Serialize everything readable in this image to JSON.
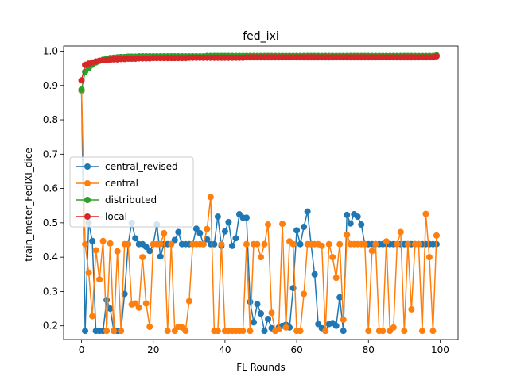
{
  "chart_data": {
    "type": "line",
    "title": "fed_ixi",
    "xlabel": "FL Rounds",
    "ylabel": "train_meter_FedIXI_dice",
    "xlim": [
      -5,
      105
    ],
    "ylim": [
      0.16,
      1.015
    ],
    "xticks": [
      0,
      20,
      40,
      60,
      80,
      100
    ],
    "yticks": [
      0.2,
      0.3,
      0.4,
      0.5,
      0.6,
      0.7,
      0.8,
      0.9,
      1.0
    ],
    "xtick_labels": [
      "0",
      "20",
      "40",
      "60",
      "80",
      "100"
    ],
    "ytick_labels": [
      "0.2",
      "0.3",
      "0.4",
      "0.5",
      "0.6",
      "0.7",
      "0.8",
      "0.9",
      "1.0"
    ],
    "grid": false,
    "legend_position": "center-left",
    "series": [
      {
        "name": "central_revised",
        "color": "#1f77b4",
        "values": [
          0.885,
          0.185,
          0.5,
          0.447,
          0.185,
          0.185,
          0.185,
          0.275,
          0.25,
          0.185,
          0.185,
          0.185,
          0.293,
          0.438,
          0.5,
          0.455,
          0.438,
          0.438,
          0.43,
          0.418,
          0.438,
          0.495,
          0.402,
          0.438,
          0.438,
          0.438,
          0.45,
          0.473,
          0.438,
          0.438,
          0.438,
          0.438,
          0.483,
          0.47,
          0.438,
          0.452,
          0.438,
          0.438,
          0.518,
          0.433,
          0.475,
          0.502,
          0.433,
          0.455,
          0.525,
          0.515,
          0.515,
          0.27,
          0.21,
          0.263,
          0.236,
          0.185,
          0.22,
          0.193,
          0.185,
          0.195,
          0.2,
          0.203,
          0.195,
          0.31,
          0.478,
          0.438,
          0.488,
          0.533,
          0.438,
          0.35,
          0.205,
          0.193,
          0.185,
          0.205,
          0.208,
          0.2,
          0.283,
          0.185,
          0.523,
          0.498,
          0.525,
          0.518,
          0.495,
          0.438,
          0.438,
          0.438,
          0.438,
          0.438,
          0.438,
          0.438,
          0.438,
          0.438,
          0.438,
          0.438,
          0.438,
          0.438,
          0.438,
          0.438,
          0.438,
          0.438,
          0.438,
          0.438,
          0.438,
          0.438
        ]
      },
      {
        "name": "central",
        "color": "#ff7f0e",
        "values": [
          0.885,
          0.438,
          0.355,
          0.228,
          0.42,
          0.335,
          0.447,
          0.185,
          0.44,
          0.185,
          0.417,
          0.185,
          0.438,
          0.438,
          0.262,
          0.265,
          0.253,
          0.4,
          0.265,
          0.197,
          0.438,
          0.438,
          0.438,
          0.47,
          0.185,
          0.438,
          0.185,
          0.197,
          0.195,
          0.185,
          0.272,
          0.438,
          0.438,
          0.438,
          0.438,
          0.482,
          0.575,
          0.185,
          0.185,
          0.438,
          0.185,
          0.185,
          0.185,
          0.185,
          0.185,
          0.185,
          0.438,
          0.185,
          0.438,
          0.438,
          0.4,
          0.438,
          0.495,
          0.238,
          0.185,
          0.19,
          0.497,
          0.195,
          0.446,
          0.438,
          0.185,
          0.185,
          0.293,
          0.438,
          0.438,
          0.438,
          0.438,
          0.433,
          0.185,
          0.438,
          0.4,
          0.34,
          0.438,
          0.218,
          0.465,
          0.438,
          0.438,
          0.438,
          0.438,
          0.438,
          0.185,
          0.418,
          0.438,
          0.185,
          0.185,
          0.446,
          0.185,
          0.195,
          0.438,
          0.473,
          0.185,
          0.438,
          0.248,
          0.438,
          0.438,
          0.185,
          0.526,
          0.4,
          0.185,
          0.463
        ]
      },
      {
        "name": "distributed",
        "color": "#2ca02c",
        "values": [
          0.888,
          0.94,
          0.95,
          0.96,
          0.967,
          0.972,
          0.975,
          0.978,
          0.98,
          0.981,
          0.982,
          0.983,
          0.983,
          0.984,
          0.984,
          0.984,
          0.985,
          0.985,
          0.985,
          0.985,
          0.985,
          0.985,
          0.985,
          0.985,
          0.985,
          0.985,
          0.985,
          0.985,
          0.985,
          0.985,
          0.985,
          0.985,
          0.985,
          0.985,
          0.985,
          0.986,
          0.986,
          0.986,
          0.986,
          0.986,
          0.986,
          0.986,
          0.986,
          0.986,
          0.986,
          0.986,
          0.986,
          0.986,
          0.986,
          0.986,
          0.986,
          0.986,
          0.986,
          0.986,
          0.986,
          0.986,
          0.986,
          0.986,
          0.986,
          0.986,
          0.986,
          0.986,
          0.986,
          0.986,
          0.986,
          0.986,
          0.986,
          0.986,
          0.986,
          0.986,
          0.986,
          0.986,
          0.986,
          0.986,
          0.986,
          0.986,
          0.986,
          0.986,
          0.986,
          0.986,
          0.986,
          0.986,
          0.986,
          0.986,
          0.986,
          0.986,
          0.986,
          0.986,
          0.986,
          0.986,
          0.986,
          0.986,
          0.986,
          0.986,
          0.986,
          0.986,
          0.986,
          0.986,
          0.986,
          0.988
        ]
      },
      {
        "name": "local",
        "color": "#d62728",
        "values": [
          0.915,
          0.96,
          0.964,
          0.967,
          0.97,
          0.972,
          0.973,
          0.974,
          0.975,
          0.976,
          0.976,
          0.977,
          0.977,
          0.978,
          0.978,
          0.978,
          0.979,
          0.979,
          0.979,
          0.979,
          0.98,
          0.98,
          0.98,
          0.98,
          0.98,
          0.98,
          0.98,
          0.98,
          0.98,
          0.98,
          0.981,
          0.981,
          0.981,
          0.981,
          0.981,
          0.981,
          0.981,
          0.981,
          0.981,
          0.981,
          0.981,
          0.981,
          0.981,
          0.981,
          0.981,
          0.981,
          0.982,
          0.982,
          0.982,
          0.982,
          0.982,
          0.982,
          0.982,
          0.982,
          0.982,
          0.982,
          0.982,
          0.982,
          0.982,
          0.982,
          0.982,
          0.982,
          0.982,
          0.982,
          0.982,
          0.982,
          0.982,
          0.982,
          0.982,
          0.982,
          0.982,
          0.982,
          0.982,
          0.982,
          0.982,
          0.982,
          0.982,
          0.982,
          0.982,
          0.982,
          0.982,
          0.982,
          0.982,
          0.982,
          0.982,
          0.982,
          0.982,
          0.982,
          0.982,
          0.982,
          0.982,
          0.982,
          0.982,
          0.982,
          0.982,
          0.982,
          0.982,
          0.982,
          0.982,
          0.985
        ]
      }
    ]
  }
}
